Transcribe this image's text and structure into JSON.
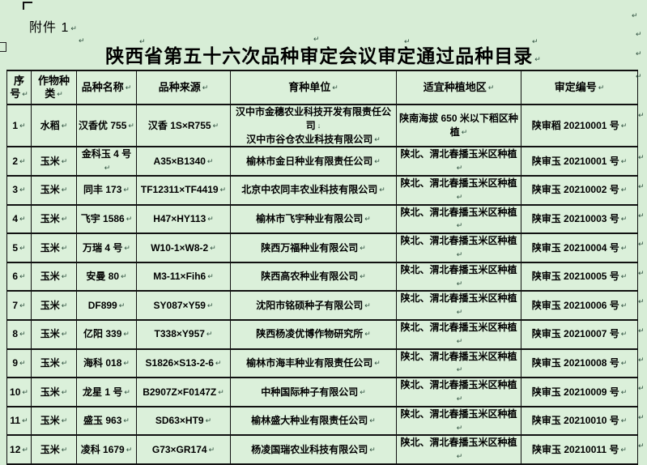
{
  "page": {
    "attachment_label": "附件 1",
    "title": "陕西省第五十六次品种审定会议审定通过品种目录"
  },
  "colors": {
    "page_background": "#d7edd6",
    "cell_background": "#dbf0da",
    "border": "#111111",
    "formatting_mark": "#2e4f3e"
  },
  "table": {
    "headers": [
      "序号",
      "作物种类",
      "品种名称",
      "品种来源",
      "育种单位",
      "适宜种植地区",
      "审定编号"
    ],
    "rows": [
      {
        "no": "1",
        "crop": "水稻",
        "name": "汉香优 755",
        "source": "汉香 1S×R755",
        "breeder": "汉中市金穗农业科技开发有限责任公司",
        "breeder2": "汉中市谷仓农业科技有限公司",
        "region": "陕南海拔 650 米以下稻区种植",
        "cert": "陕审稻 20210001 号"
      },
      {
        "no": "2",
        "crop": "玉米",
        "name": "金科玉 4 号",
        "source": "A35×B1340",
        "breeder": "榆林市金日种业有限责任公司",
        "region": "陕北、渭北春播玉米区种植",
        "cert": "陕审玉 20210001 号"
      },
      {
        "no": "3",
        "crop": "玉米",
        "name": "同丰 173",
        "source": "TF12311×TF4419",
        "breeder": "北京中农同丰农业科技有限公司",
        "region": "陕北、渭北春播玉米区种植",
        "cert": "陕审玉 20210002 号"
      },
      {
        "no": "4",
        "crop": "玉米",
        "name": "飞宇 1586",
        "source": "H47×HY113",
        "breeder": "榆林市飞宇种业有限公司",
        "region": "陕北、渭北春播玉米区种植",
        "cert": "陕审玉 20210003 号"
      },
      {
        "no": "5",
        "crop": "玉米",
        "name": "万瑞 4 号",
        "source": "W10-1×W8-2",
        "breeder": "陕西万福种业有限公司",
        "region": "陕北、渭北春播玉米区种植",
        "cert": "陕审玉 20210004 号"
      },
      {
        "no": "6",
        "crop": "玉米",
        "name": "安曼 80",
        "source": "M3-11×Fih6",
        "breeder": "陕西高农种业有限公司",
        "region": "陕北、渭北春播玉米区种植",
        "cert": "陕审玉 20210005 号"
      },
      {
        "no": "7",
        "crop": "玉米",
        "name": "DF899",
        "source": "SY087×Y59",
        "breeder": "沈阳市铭硕种子有限公司",
        "region": "陕北、渭北春播玉米区种植",
        "cert": "陕审玉 20210006 号"
      },
      {
        "no": "8",
        "crop": "玉米",
        "name": "亿阳 339",
        "source": "T338×Y957",
        "breeder": "陕西杨凌优博作物研究所",
        "region": "陕北、渭北春播玉米区种植",
        "cert": "陕审玉 20210007 号"
      },
      {
        "no": "9",
        "crop": "玉米",
        "name": "海科 018",
        "source": "S1826×S13-2-6",
        "breeder": "榆林市海丰种业有限责任公司",
        "region": "陕北、渭北春播玉米区种植",
        "cert": "陕审玉 20210008 号"
      },
      {
        "no": "10",
        "crop": "玉米",
        "name": "龙星 1 号",
        "source": "B2907Z×F0147Z",
        "breeder": "中种国际种子有限公司",
        "region": "陕北、渭北春播玉米区种植",
        "cert": "陕审玉 20210009 号"
      },
      {
        "no": "11",
        "crop": "玉米",
        "name": "盛玉 963",
        "source": "SD63×HT9",
        "breeder": "榆林盛大种业有限责任公司",
        "region": "陕北、渭北春播玉米区种植",
        "cert": "陕审玉 20210010 号"
      },
      {
        "no": "12",
        "crop": "玉米",
        "name": "凌科 1679",
        "source": "G73×GR174",
        "breeder": "杨凌国瑞农业科技有限公司",
        "region": "陕北、渭北春播玉米区种植",
        "cert": "陕审玉 20210011 号"
      }
    ]
  }
}
